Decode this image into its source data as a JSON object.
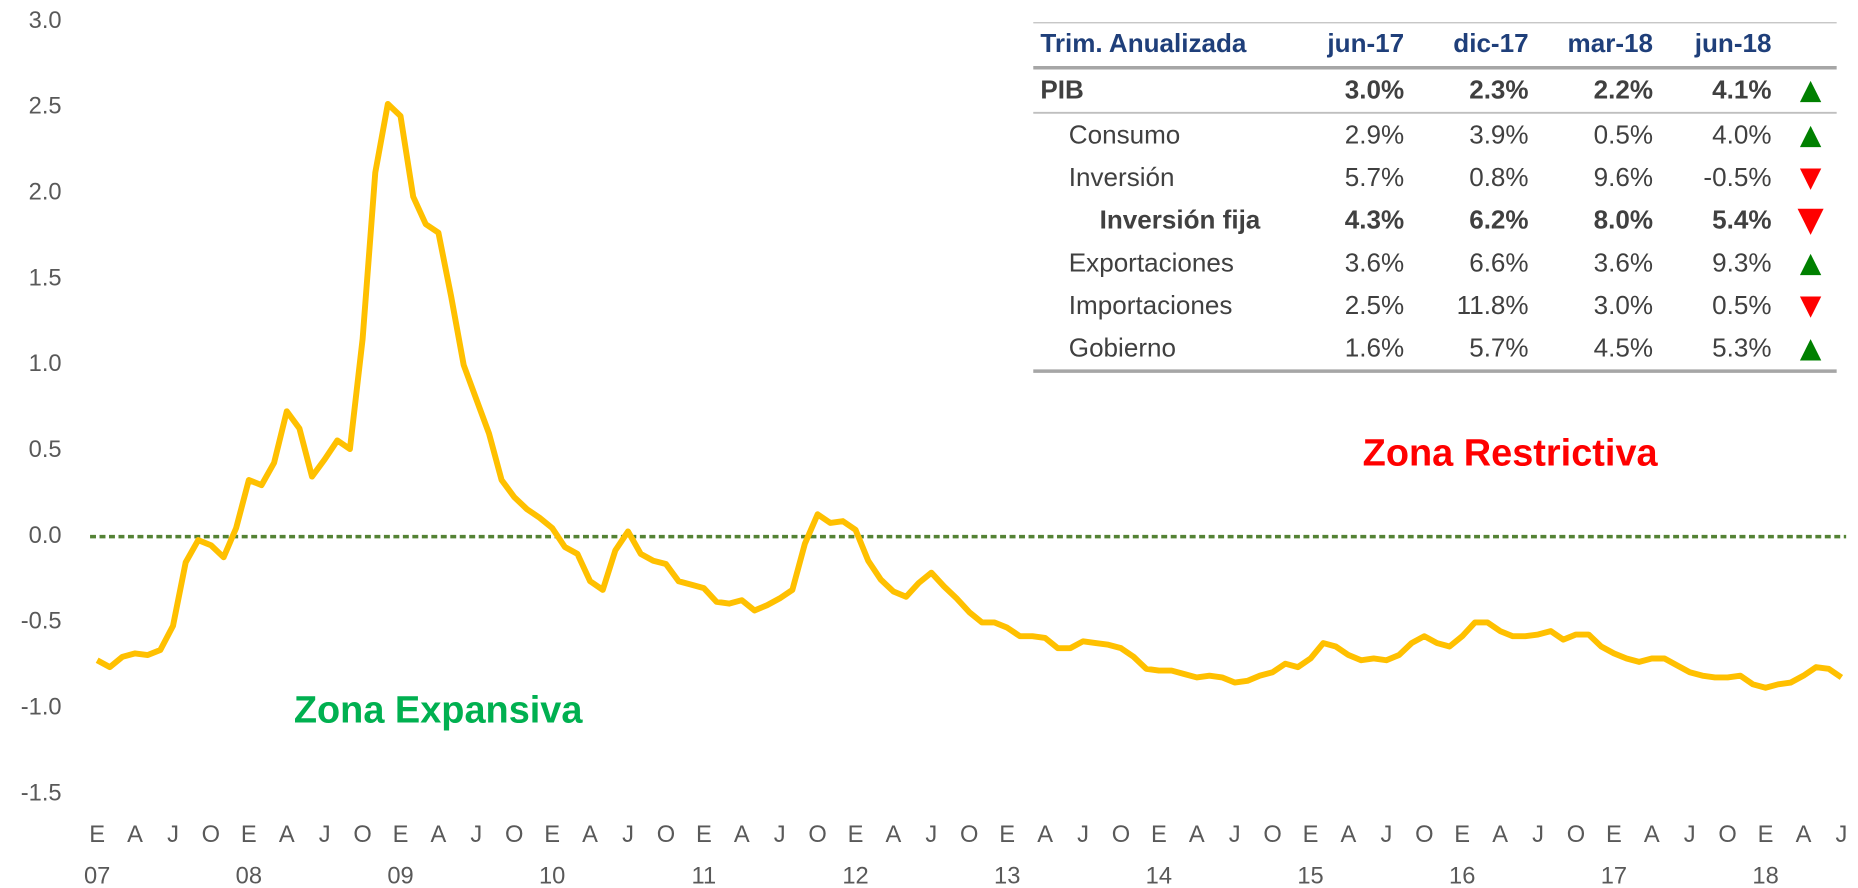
{
  "chart_data": {
    "type": "line",
    "categories": [
      "E",
      null,
      null,
      "A",
      null,
      null,
      "J",
      null,
      null,
      "O",
      null,
      null,
      "E",
      null,
      null,
      "A",
      null,
      null,
      "J",
      null,
      null,
      "O",
      null,
      null,
      "E",
      null,
      null,
      "A",
      null,
      null,
      "J",
      null,
      null,
      "O",
      null,
      null,
      "E",
      null,
      null,
      "A",
      null,
      null,
      "J",
      null,
      null,
      "O",
      null,
      null,
      "E",
      null,
      null,
      "A",
      null,
      null,
      "J",
      null,
      null,
      "O",
      null,
      null,
      "E",
      null,
      null,
      "A",
      null,
      null,
      "J",
      null,
      null,
      "O",
      null,
      null,
      "E",
      null,
      null,
      "A",
      null,
      null,
      "J",
      null,
      null,
      "O",
      null,
      null,
      "E",
      null,
      null,
      "A",
      null,
      null,
      "J",
      null,
      null,
      "O",
      null,
      null,
      "E",
      null,
      null,
      "A",
      null,
      null,
      "J",
      null,
      null,
      "O",
      null,
      null,
      "E",
      null,
      null,
      "A",
      null,
      null,
      "J",
      null,
      null,
      "O",
      null,
      null,
      "E",
      null,
      null,
      "A",
      null,
      null,
      "J",
      null,
      null,
      "O",
      null,
      null,
      "E",
      null,
      null,
      "A",
      null,
      null,
      "J"
    ],
    "years": [
      "07",
      "08",
      "09",
      "10",
      "11",
      "12",
      "13",
      "14",
      "15",
      "16",
      "17",
      "18"
    ],
    "series": [
      {
        "color": "#ffc000",
        "values": [
          -0.72,
          -0.76,
          -0.7,
          -0.68,
          -0.69,
          -0.66,
          -0.52,
          -0.15,
          -0.02,
          -0.05,
          -0.12,
          0.05,
          0.33,
          0.3,
          0.43,
          0.73,
          0.63,
          0.35,
          0.45,
          0.56,
          0.51,
          1.15,
          2.12,
          2.52,
          2.45,
          1.98,
          1.82,
          1.77,
          1.4,
          1.0,
          0.8,
          0.6,
          0.33,
          0.23,
          0.16,
          0.11,
          0.05,
          -0.06,
          -0.1,
          -0.26,
          -0.31,
          -0.08,
          0.03,
          -0.1,
          -0.14,
          -0.16,
          -0.26,
          -0.28,
          -0.3,
          -0.38,
          -0.39,
          -0.37,
          -0.43,
          -0.4,
          -0.36,
          -0.31,
          -0.04,
          0.13,
          0.08,
          0.09,
          0.04,
          -0.14,
          -0.25,
          -0.32,
          -0.35,
          -0.27,
          -0.21,
          -0.29,
          -0.36,
          -0.44,
          -0.5,
          -0.5,
          -0.53,
          -0.58,
          -0.58,
          -0.59,
          -0.65,
          -0.65,
          -0.61,
          -0.62,
          -0.63,
          -0.65,
          -0.7,
          -0.77,
          -0.78,
          -0.78,
          -0.8,
          -0.82,
          -0.81,
          -0.82,
          -0.85,
          -0.84,
          -0.81,
          -0.79,
          -0.74,
          -0.76,
          -0.71,
          -0.62,
          -0.64,
          -0.69,
          -0.72,
          -0.71,
          -0.72,
          -0.69,
          -0.62,
          -0.58,
          -0.62,
          -0.64,
          -0.58,
          -0.5,
          -0.5,
          -0.55,
          -0.58,
          -0.58,
          -0.57,
          -0.55,
          -0.6,
          -0.57,
          -0.57,
          -0.64,
          -0.68,
          -0.71,
          -0.73,
          -0.71,
          -0.71,
          -0.75,
          -0.79,
          -0.81,
          -0.82,
          -0.82,
          -0.81,
          -0.86,
          -0.88,
          -0.86,
          -0.85,
          -0.81,
          -0.76,
          -0.77,
          -0.82
        ]
      }
    ],
    "reference_line": {
      "value": 0,
      "color": "#548235"
    },
    "ylim": [
      -1.5,
      3.0
    ],
    "yticks": [
      {
        "value": -1.5,
        "label": "-1.5"
      },
      {
        "value": -1,
        "label": "-1.0"
      },
      -0.5,
      {
        "value": 0,
        "label": "0.0"
      },
      0.5,
      {
        "value": 1,
        "label": "1.0"
      },
      1.5,
      {
        "value": 2,
        "label": "2.0"
      },
      2.5,
      {
        "value": 3,
        "label": "3.0"
      }
    ],
    "annotations": [
      {
        "text": "Zona Restrictiva",
        "color": "#ff0000"
      },
      {
        "text": "Zona Expansiva",
        "color": "#00b050"
      }
    ]
  },
  "table": {
    "header": [
      "Trim. Anualizada",
      "jun-17",
      "dic-17",
      "mar-18",
      "jun-18"
    ],
    "rows": [
      {
        "cells": [
          "PIB",
          "3.0%",
          "2.3%",
          "2.2%",
          "4.1%"
        ],
        "trend": "up",
        "level": 0,
        "bold": true
      },
      {
        "cells": [
          "Consumo",
          "2.9%",
          "3.9%",
          "0.5%",
          "4.0%"
        ],
        "trend": "up",
        "level": 1,
        "bold": false
      },
      {
        "cells": [
          "Inversión",
          "5.7%",
          "0.8%",
          "9.6%",
          "-0.5%"
        ],
        "trend": "down",
        "level": 1,
        "bold": false
      },
      {
        "cells": [
          "Inversión fija",
          "4.3%",
          "6.2%",
          "8.0%",
          "5.4%"
        ],
        "trend": "down",
        "level": 2,
        "bold": true
      },
      {
        "cells": [
          "Exportaciones",
          "3.6%",
          "6.6%",
          "3.6%",
          "9.3%"
        ],
        "trend": "up",
        "level": 1,
        "bold": false
      },
      {
        "cells": [
          "Importaciones",
          "2.5%",
          "11.8%",
          "3.0%",
          "0.5%"
        ],
        "trend": "down",
        "level": 1,
        "bold": false
      },
      {
        "cells": [
          "Gobierno",
          "1.6%",
          "5.7%",
          "4.5%",
          "5.3%"
        ],
        "trend": "up",
        "level": 1,
        "bold": false
      }
    ]
  }
}
